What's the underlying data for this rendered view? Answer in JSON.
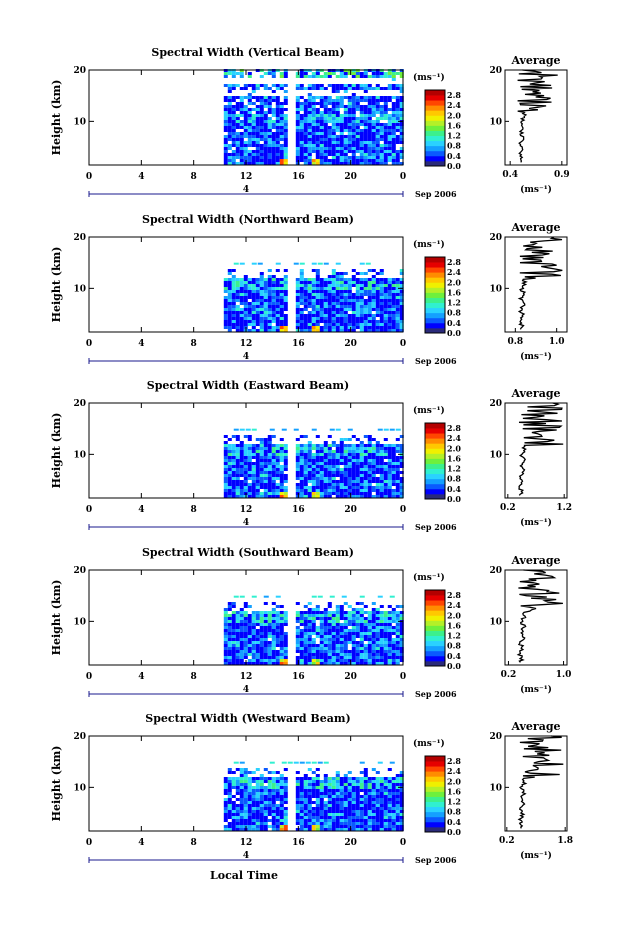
{
  "shared": {
    "x_axis_label": "Local Time",
    "day_marker": "4",
    "date_label": "Sep 2006",
    "y_axis_label": "Height (km)",
    "colorbar_unit": "(ms⁻¹)",
    "avg_title": "Average",
    "avg_xlabel": "(ms⁻¹)"
  },
  "chart_data": [
    {
      "type": "heatmap",
      "title": "Spectral Width (Vertical Beam)",
      "xlabel": "Local Time",
      "ylabel": "Height (km)",
      "xlim": [
        0,
        24
      ],
      "ylim": [
        1.5,
        20
      ],
      "x_ticks": [
        "0",
        "4",
        "8",
        "12",
        "16",
        "20",
        "0"
      ],
      "y_ticks": [
        "10",
        "20"
      ],
      "data_start_hour": 10.3,
      "data_gap_hours": [
        15.4,
        15.8
      ],
      "colorbar": {
        "ticks": [
          "0.0",
          "0.4",
          "0.8",
          "1.2",
          "1.6",
          "2.0",
          "2.4",
          "2.8"
        ],
        "min": 0.0,
        "max": 3.0
      },
      "average_profile": {
        "title": "Average",
        "xlabel": "(ms⁻¹)",
        "x_ticks": [
          "0.4",
          "0.9"
        ],
        "xlim": [
          0.35,
          0.95
        ],
        "y_ticks": [
          "10",
          "20"
        ]
      }
    },
    {
      "type": "heatmap",
      "title": "Spectral Width (Northward Beam)",
      "xlabel": "Local Time",
      "ylabel": "Height (km)",
      "xlim": [
        0,
        24
      ],
      "ylim": [
        1.5,
        20
      ],
      "x_ticks": [
        "0",
        "4",
        "8",
        "12",
        "16",
        "20",
        "0"
      ],
      "y_ticks": [
        "10",
        "20"
      ],
      "data_start_hour": 10.3,
      "data_gap_hours": [
        15.4,
        15.8
      ],
      "colorbar": {
        "ticks": [
          "0.0",
          "0.4",
          "0.8",
          "1.2",
          "1.6",
          "2.0",
          "2.4",
          "2.8"
        ],
        "min": 0.0,
        "max": 3.0
      },
      "average_profile": {
        "title": "Average",
        "xlabel": "(ms⁻¹)",
        "x_ticks": [
          "0.8",
          "1.0"
        ],
        "xlim": [
          0.75,
          1.05
        ],
        "y_ticks": [
          "10",
          "20"
        ]
      }
    },
    {
      "type": "heatmap",
      "title": "Spectral Width (Eastward Beam)",
      "xlabel": "Local Time",
      "ylabel": "Height (km)",
      "xlim": [
        0,
        24
      ],
      "ylim": [
        1.5,
        20
      ],
      "x_ticks": [
        "0",
        "4",
        "8",
        "12",
        "16",
        "20",
        "0"
      ],
      "y_ticks": [
        "10",
        "20"
      ],
      "data_start_hour": 10.3,
      "data_gap_hours": [
        15.4,
        15.8
      ],
      "colorbar": {
        "ticks": [
          "0.0",
          "0.4",
          "0.8",
          "1.2",
          "1.6",
          "2.0",
          "2.4",
          "2.8"
        ],
        "min": 0.0,
        "max": 3.0
      },
      "average_profile": {
        "title": "Average",
        "xlabel": "(ms⁻¹)",
        "x_ticks": [
          "0.2",
          "1.2"
        ],
        "xlim": [
          0.15,
          1.25
        ],
        "y_ticks": [
          "10",
          "20"
        ]
      }
    },
    {
      "type": "heatmap",
      "title": "Spectral Width (Southward Beam)",
      "xlabel": "Local Time",
      "ylabel": "Height (km)",
      "xlim": [
        0,
        24
      ],
      "ylim": [
        1.5,
        20
      ],
      "x_ticks": [
        "0",
        "4",
        "8",
        "12",
        "16",
        "20",
        "0"
      ],
      "y_ticks": [
        "10",
        "20"
      ],
      "data_start_hour": 10.3,
      "data_gap_hours": [
        15.4,
        15.8
      ],
      "colorbar": {
        "ticks": [
          "0.0",
          "0.4",
          "0.8",
          "1.2",
          "1.6",
          "2.0",
          "2.4",
          "2.8"
        ],
        "min": 0.0,
        "max": 3.0
      },
      "average_profile": {
        "title": "Average",
        "xlabel": "(ms⁻¹)",
        "x_ticks": [
          "0.2",
          "1.0"
        ],
        "xlim": [
          0.15,
          1.05
        ],
        "y_ticks": [
          "10",
          "20"
        ]
      }
    },
    {
      "type": "heatmap",
      "title": "Spectral Width (Westward Beam)",
      "xlabel": "Local Time",
      "ylabel": "Height (km)",
      "xlim": [
        0,
        24
      ],
      "ylim": [
        1.5,
        20
      ],
      "x_ticks": [
        "0",
        "4",
        "8",
        "12",
        "16",
        "20",
        "0"
      ],
      "y_ticks": [
        "10",
        "20"
      ],
      "data_start_hour": 10.3,
      "data_gap_hours": [
        15.4,
        15.8
      ],
      "colorbar": {
        "ticks": [
          "0.0",
          "0.4",
          "0.8",
          "1.2",
          "1.6",
          "2.0",
          "2.4",
          "2.8"
        ],
        "min": 0.0,
        "max": 3.0
      },
      "average_profile": {
        "title": "Average",
        "xlabel": "(ms⁻¹)",
        "x_ticks": [
          "0.2",
          "1.8"
        ],
        "xlim": [
          0.15,
          1.85
        ],
        "y_ticks": [
          "10",
          "20"
        ]
      }
    }
  ],
  "colors": {
    "colorbar": [
      "#2a2a7a",
      "#0000ff",
      "#0a5aff",
      "#14a0ff",
      "#2ad2ff",
      "#30f0d0",
      "#3cf08c",
      "#6ef03c",
      "#b4f028",
      "#f0f000",
      "#ffc800",
      "#ff8c00",
      "#ff4600",
      "#e60000",
      "#b40000"
    ],
    "gap": "#ffffff",
    "frame": "#000000"
  }
}
